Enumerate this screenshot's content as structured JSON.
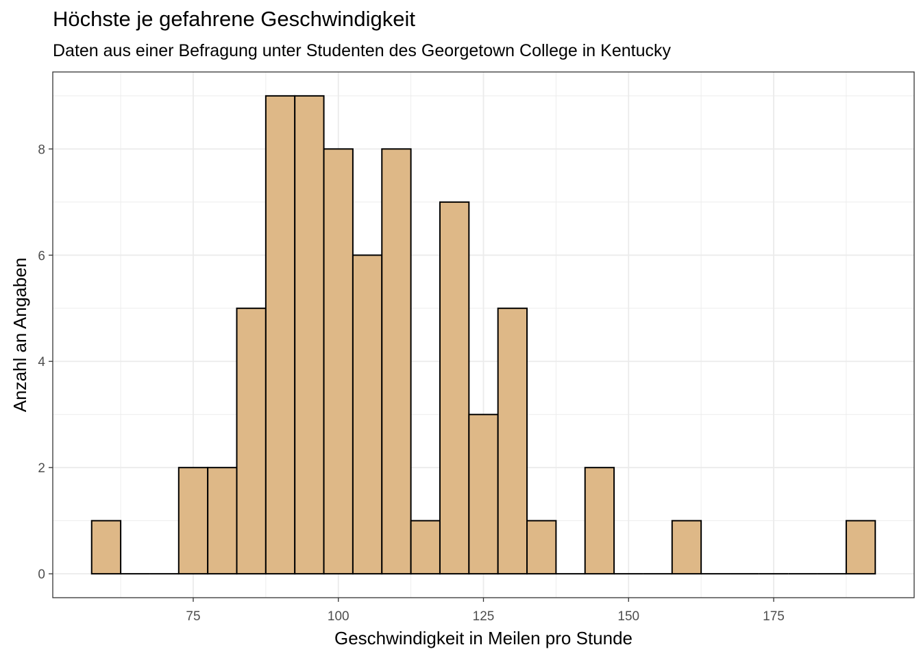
{
  "chart_data": {
    "type": "histogram",
    "title": "Höchste je gefahrene Geschwindigkeit",
    "subtitle": "Daten aus einer Befragung unter Studenten des Georgetown College in Kentucky",
    "xlabel": "Geschwindigkeit in Meilen pro Stunde",
    "ylabel": "Anzahl an Angaben",
    "bin_width": 5,
    "bins": [
      {
        "x_start": 57.5,
        "x_end": 62.5,
        "count": 1
      },
      {
        "x_start": 62.5,
        "x_end": 67.5,
        "count": 0
      },
      {
        "x_start": 67.5,
        "x_end": 72.5,
        "count": 0
      },
      {
        "x_start": 72.5,
        "x_end": 77.5,
        "count": 2
      },
      {
        "x_start": 77.5,
        "x_end": 82.5,
        "count": 2
      },
      {
        "x_start": 82.5,
        "x_end": 87.5,
        "count": 5
      },
      {
        "x_start": 87.5,
        "x_end": 92.5,
        "count": 9
      },
      {
        "x_start": 92.5,
        "x_end": 97.5,
        "count": 9
      },
      {
        "x_start": 97.5,
        "x_end": 102.5,
        "count": 8
      },
      {
        "x_start": 102.5,
        "x_end": 107.5,
        "count": 6
      },
      {
        "x_start": 107.5,
        "x_end": 112.5,
        "count": 8
      },
      {
        "x_start": 112.5,
        "x_end": 117.5,
        "count": 1
      },
      {
        "x_start": 117.5,
        "x_end": 122.5,
        "count": 7
      },
      {
        "x_start": 122.5,
        "x_end": 127.5,
        "count": 3
      },
      {
        "x_start": 127.5,
        "x_end": 132.5,
        "count": 5
      },
      {
        "x_start": 132.5,
        "x_end": 137.5,
        "count": 1
      },
      {
        "x_start": 137.5,
        "x_end": 142.5,
        "count": 0
      },
      {
        "x_start": 142.5,
        "x_end": 147.5,
        "count": 2
      },
      {
        "x_start": 147.5,
        "x_end": 152.5,
        "count": 0
      },
      {
        "x_start": 152.5,
        "x_end": 157.5,
        "count": 0
      },
      {
        "x_start": 157.5,
        "x_end": 162.5,
        "count": 1
      },
      {
        "x_start": 162.5,
        "x_end": 167.5,
        "count": 0
      },
      {
        "x_start": 167.5,
        "x_end": 172.5,
        "count": 0
      },
      {
        "x_start": 172.5,
        "x_end": 177.5,
        "count": 0
      },
      {
        "x_start": 177.5,
        "x_end": 182.5,
        "count": 0
      },
      {
        "x_start": 182.5,
        "x_end": 187.5,
        "count": 0
      },
      {
        "x_start": 187.5,
        "x_end": 192.5,
        "count": 1
      }
    ],
    "xlim": [
      50.8,
      199.2
    ],
    "ylim": [
      -0.45,
      9.45
    ],
    "x_ticks": [
      75,
      100,
      125,
      150,
      175
    ],
    "y_ticks": [
      0,
      2,
      4,
      6,
      8
    ],
    "grid": true,
    "bar_fill": "#DEB887",
    "bar_outline": "#000000",
    "grid_color": "#EBEBEB",
    "panel_border_color": "#333333"
  }
}
